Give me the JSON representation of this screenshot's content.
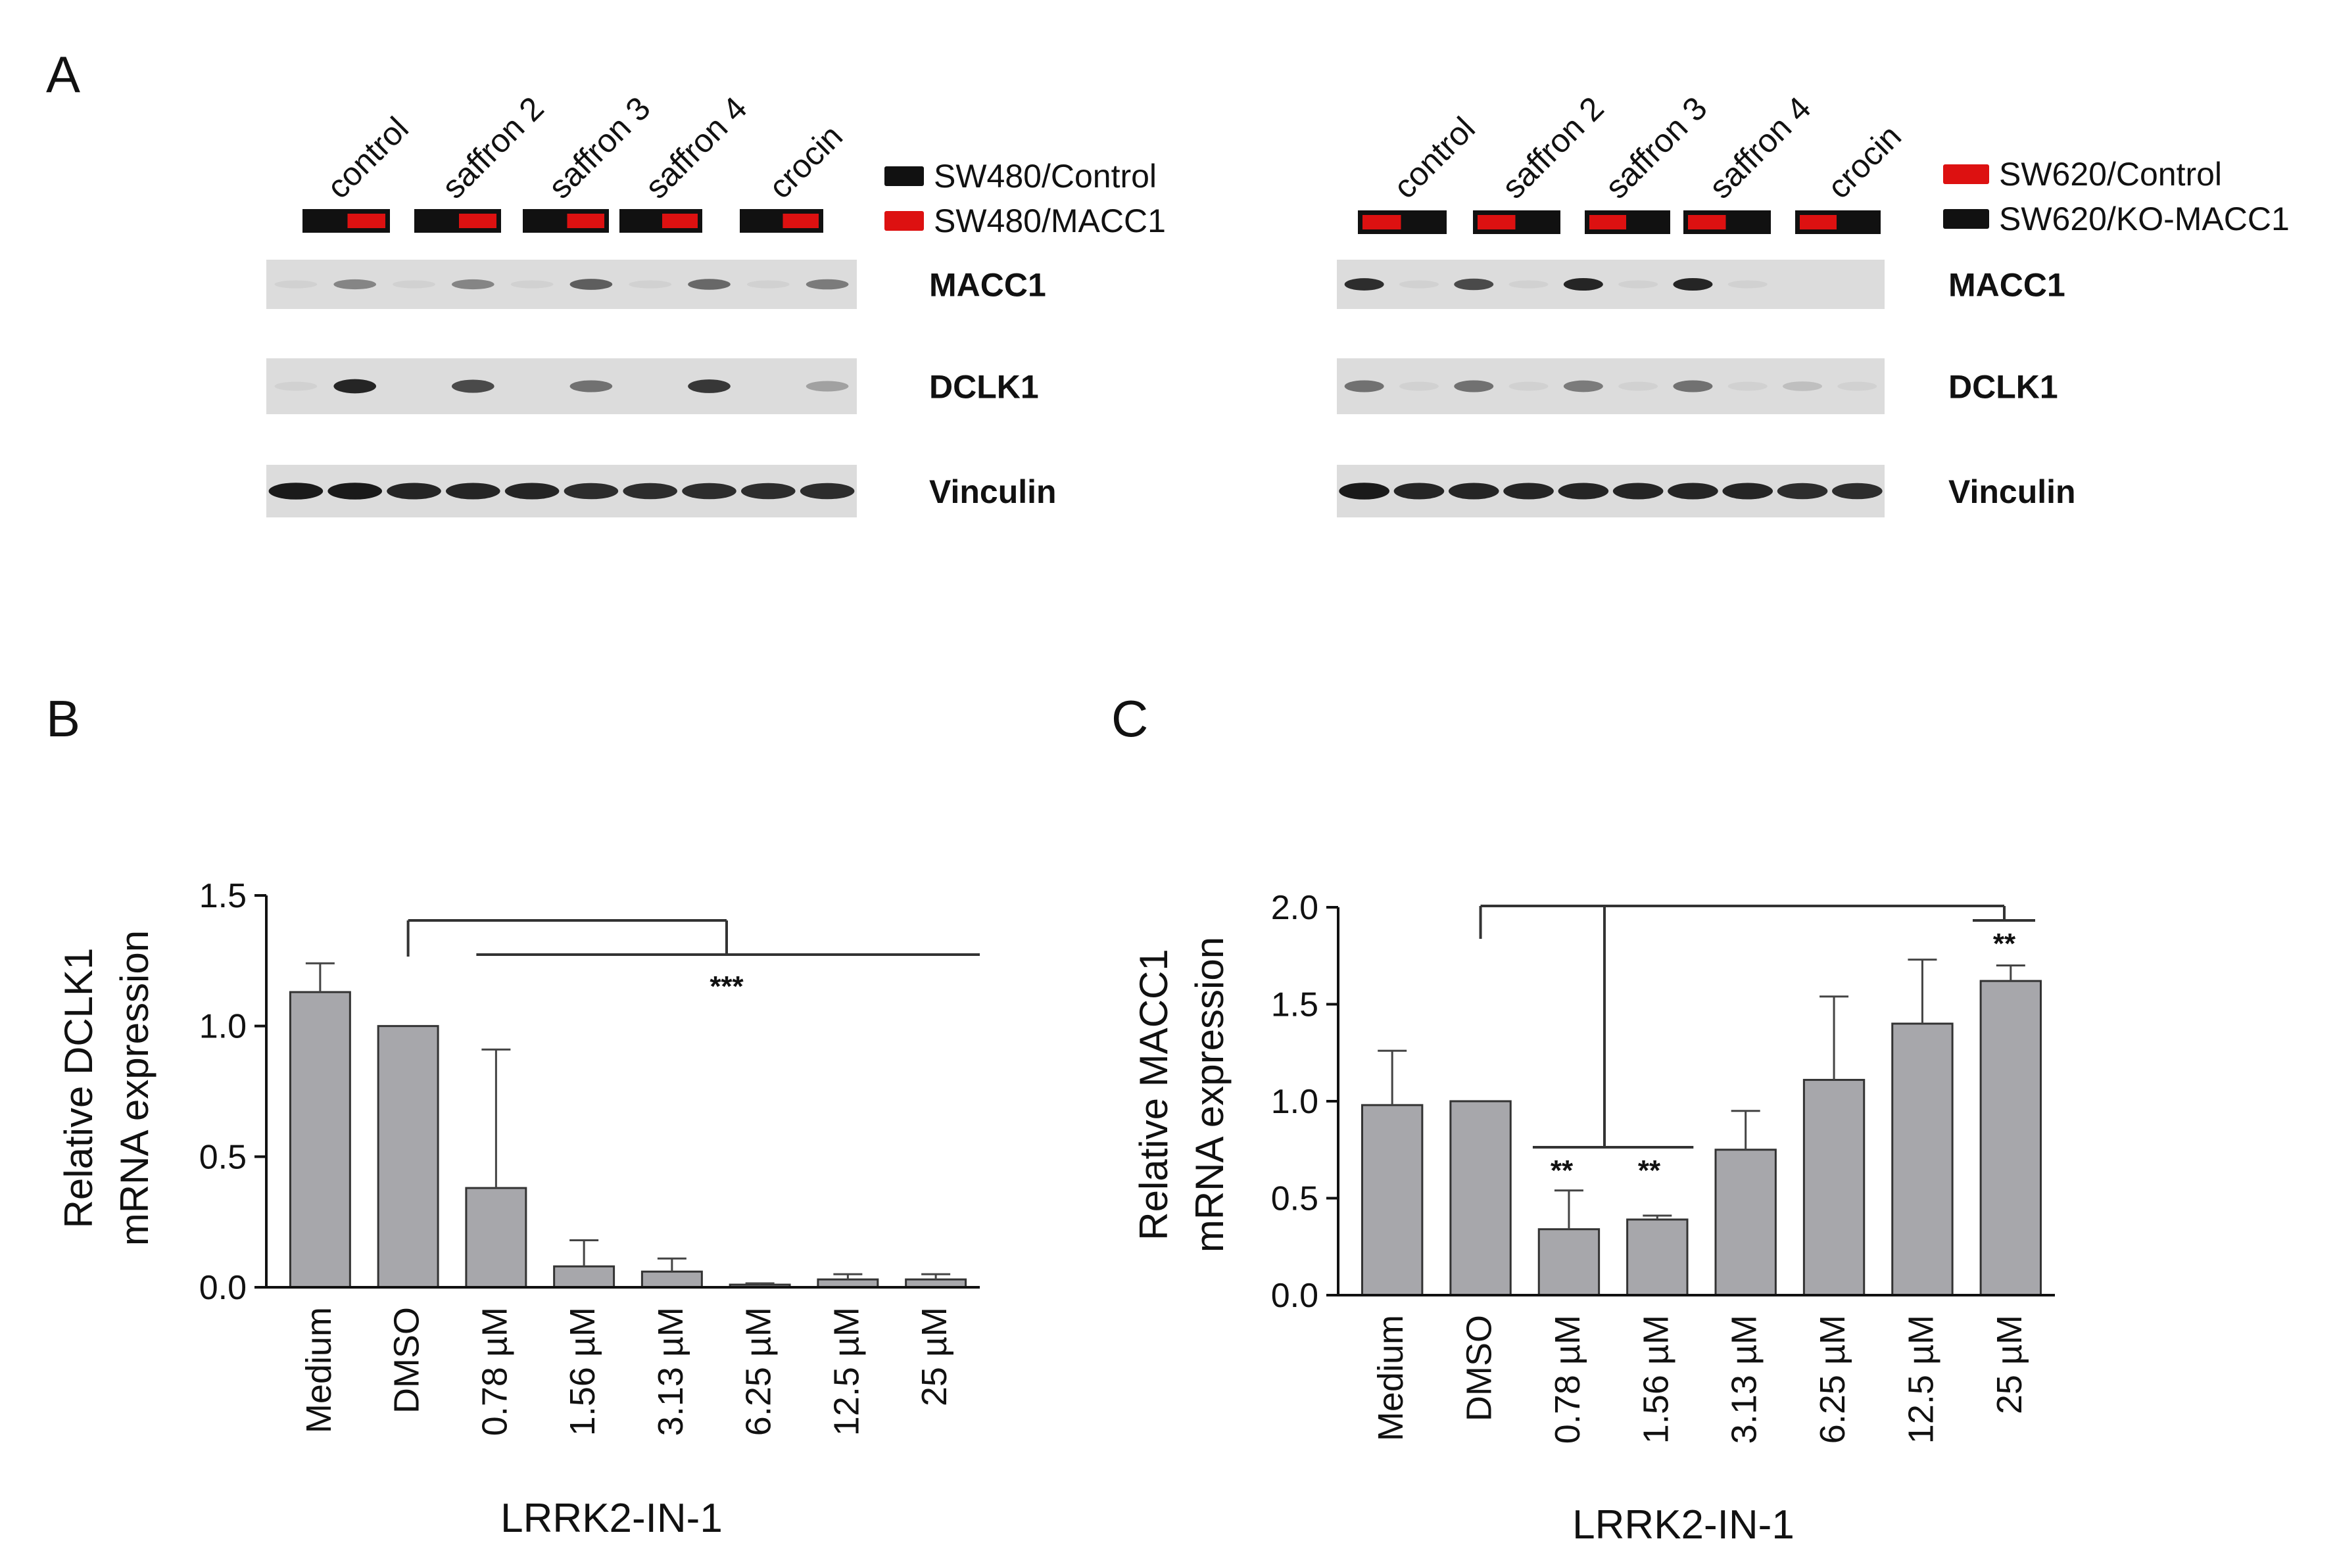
{
  "panels": {
    "a": "A",
    "b": "B",
    "c": "C"
  },
  "colors": {
    "control": "#111111",
    "treated": "#dd1111",
    "bar_fill": "#a7a7ab",
    "blot_bg": "#dcdcdc",
    "band": "#1a1a1a"
  },
  "blot_left": {
    "lanes": [
      "control",
      "saffron 2",
      "saffron 3",
      "saffron 4",
      "crocin"
    ],
    "legend": [
      {
        "label": "SW480/Control",
        "color": "#111111"
      },
      {
        "label": "SW480/MACC1",
        "color": "#dd1111"
      }
    ],
    "proteins": [
      "MACC1",
      "DCLK1",
      "Vinculin"
    ],
    "band_intensity": {
      "MACC1": [
        0.05,
        0.45,
        0.05,
        0.45,
        0.05,
        0.65,
        0.05,
        0.6,
        0.05,
        0.5
      ],
      "DCLK1": [
        0.05,
        0.95,
        0.0,
        0.75,
        0.0,
        0.55,
        0.0,
        0.85,
        0.0,
        0.3
      ],
      "Vinculin": [
        1,
        1,
        0.95,
        0.95,
        0.95,
        0.9,
        0.9,
        0.9,
        0.9,
        0.9
      ]
    }
  },
  "blot_right": {
    "lanes": [
      "control",
      "saffron 2",
      "saffron 3",
      "saffron 4",
      "crocin"
    ],
    "legend": [
      {
        "label": "SW620/Control",
        "color": "#dd1111"
      },
      {
        "label": "SW620/KO-MACC1",
        "color": "#111111"
      }
    ],
    "proteins": [
      "MACC1",
      "DCLK1",
      "Vinculin"
    ],
    "band_intensity": {
      "MACC1": [
        0.9,
        0.05,
        0.75,
        0.05,
        0.95,
        0.05,
        0.95,
        0.05,
        0.0,
        0.0
      ],
      "DCLK1": [
        0.55,
        0.05,
        0.55,
        0.05,
        0.5,
        0.05,
        0.55,
        0.05,
        0.15,
        0.05
      ],
      "Vinculin": [
        1,
        0.95,
        0.95,
        0.95,
        0.95,
        0.95,
        0.95,
        0.95,
        0.9,
        0.9
      ]
    }
  },
  "chart_data": [
    {
      "type": "bar",
      "panel": "B",
      "categories": [
        "Medium",
        "DMSO",
        "0.78 µM",
        "1.56 µM",
        "3.13 µM",
        "6.25 µM",
        "12.5 µM",
        "25 µM"
      ],
      "values": [
        1.13,
        1.0,
        0.38,
        0.08,
        0.06,
        0.01,
        0.03,
        0.03
      ],
      "errors": [
        0.11,
        0.0,
        0.53,
        0.1,
        0.05,
        0.005,
        0.02,
        0.02
      ],
      "ylim": [
        0,
        1.5
      ],
      "yticks": [
        "0.0",
        "0.5",
        "1.0",
        "1.5"
      ],
      "ylabel_line1": "Relative DCLK1",
      "ylabel_line2": "mRNA expression",
      "xlabel": "LRRK2-IN-1",
      "significance": [
        "***"
      ]
    },
    {
      "type": "bar",
      "panel": "C",
      "categories": [
        "Medium",
        "DMSO",
        "0.78 µM",
        "1.56 µM",
        "3.13 µM",
        "6.25 µM",
        "12.5 µM",
        "25 µM"
      ],
      "values": [
        0.98,
        1.0,
        0.34,
        0.39,
        0.75,
        1.11,
        1.4,
        1.62
      ],
      "errors": [
        0.28,
        0.0,
        0.2,
        0.02,
        0.2,
        0.43,
        0.33,
        0.08
      ],
      "ylim": [
        0,
        2.0
      ],
      "yticks": [
        "0.0",
        "0.5",
        "1.0",
        "1.5",
        "2.0"
      ],
      "ylabel_line1": "Relative MACC1",
      "ylabel_line2": "mRNA expression",
      "xlabel": "LRRK2-IN-1",
      "significance": [
        "**",
        "**",
        "**"
      ]
    }
  ]
}
